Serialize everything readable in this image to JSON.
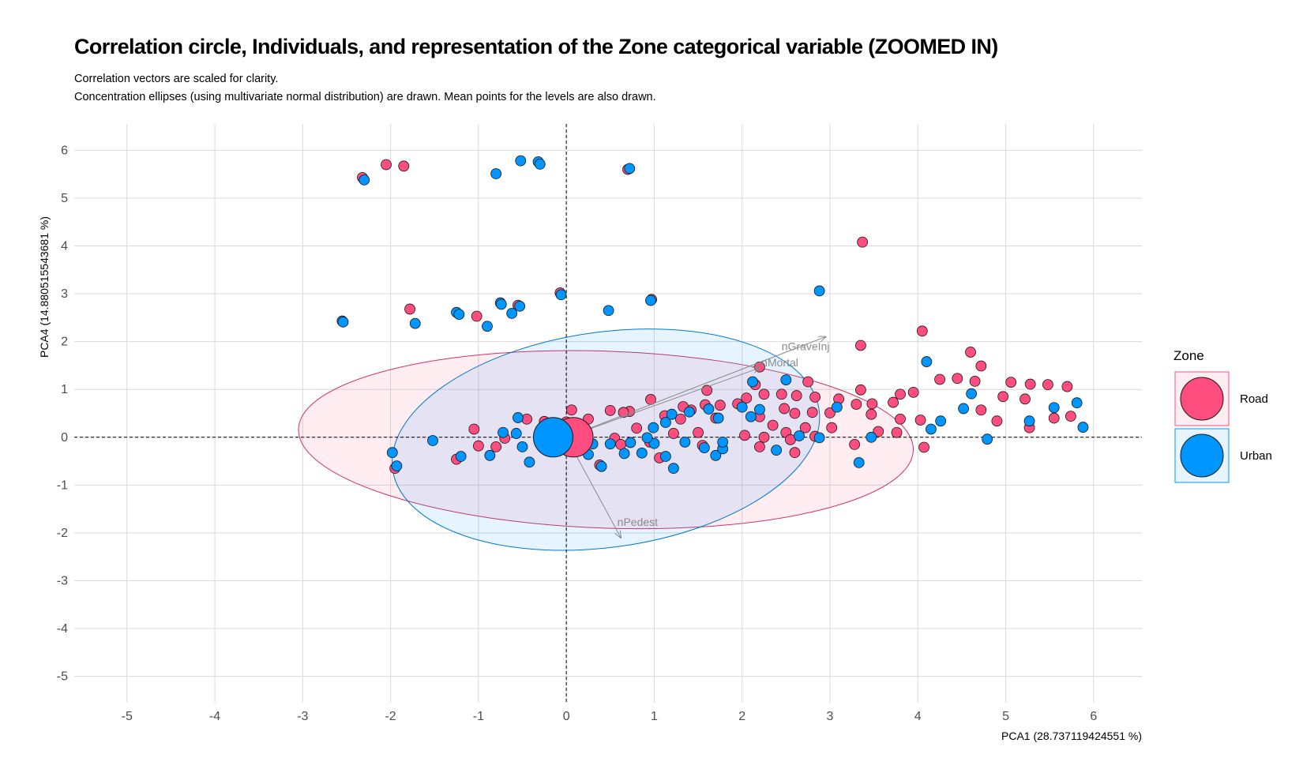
{
  "title": "Correlation circle, Individuals, and representation of the Zone categorical variable (ZOOMED IN)",
  "subtitle_line1": "Correlation vectors are scaled for clarity.",
  "subtitle_line2": "Concentration ellipses (using multivariate normal distribution) are drawn. Mean points for the levels are also drawn.",
  "chart_data": {
    "type": "scatter",
    "xlabel": "PCA1 (28.737119424551 %)",
    "ylabel": "PCA4 (14.880515543681 %)",
    "xlim": [
      -5.6,
      6.55
    ],
    "ylim": [
      -5.55,
      6.55
    ],
    "x_ticks": [
      "-5",
      "-4",
      "-3",
      "-2",
      "-1",
      "0",
      "1",
      "2",
      "3",
      "4",
      "5",
      "6"
    ],
    "y_ticks": [
      "-5",
      "-4",
      "-3",
      "-2",
      "-1",
      "0",
      "1",
      "2",
      "3",
      "4",
      "5",
      "6"
    ],
    "grid": true,
    "reference_lines": [
      "x = 0 dashed",
      "y = 0 dashed"
    ],
    "legend": {
      "title": "Zone",
      "position": "right",
      "entries": [
        {
          "label": "Road",
          "color": "#ff4d80"
        },
        {
          "label": "Urban",
          "color": "#0096ff"
        }
      ]
    },
    "ellipses": [
      {
        "level": "Road",
        "center": [
          0.45,
          -0.05
        ],
        "semi_axes": [
          3.5,
          1.85
        ],
        "angle_deg": 2,
        "fill": "#ff4d80",
        "stroke": "#cc3366"
      },
      {
        "level": "Urban",
        "center": [
          0.45,
          -0.05
        ],
        "semi_axes": [
          2.45,
          2.25
        ],
        "angle_deg": -8,
        "fill": "#0096ff",
        "stroke": "#0077cc"
      }
    ],
    "vectors": [
      {
        "label": "nGraveInj",
        "x": 2.95,
        "y": 2.1,
        "label_x": 2.45,
        "label_y": 1.82
      },
      {
        "label": "nMortal",
        "x": 2.2,
        "y": 1.45,
        "label_x": 2.22,
        "label_y": 1.48
      },
      {
        "label": "nPedest",
        "x": 0.62,
        "y": -2.1,
        "label_x": 0.58,
        "label_y": -1.85
      }
    ],
    "means": [
      {
        "level": "Road",
        "x": 0.08,
        "y": 0.0
      },
      {
        "level": "Urban",
        "x": -0.15,
        "y": 0.0
      }
    ],
    "series": [
      {
        "name": "Road",
        "color": "#ff4d80",
        "points": [
          [
            -2.32,
            5.43
          ],
          [
            -2.05,
            5.7
          ],
          [
            -1.85,
            5.67
          ],
          [
            0.7,
            5.6
          ],
          [
            3.37,
            4.08
          ],
          [
            -1.78,
            2.68
          ],
          [
            -1.02,
            2.53
          ],
          [
            -0.55,
            2.76
          ],
          [
            -0.07,
            3.02
          ],
          [
            0.97,
            2.88
          ],
          [
            4.05,
            2.22
          ],
          [
            3.35,
            1.92
          ],
          [
            4.6,
            1.78
          ],
          [
            4.72,
            1.49
          ],
          [
            2.75,
            1.16
          ],
          [
            4.25,
            1.21
          ],
          [
            4.45,
            1.23
          ],
          [
            4.65,
            1.17
          ],
          [
            5.06,
            1.15
          ],
          [
            5.28,
            1.11
          ],
          [
            5.48,
            1.1
          ],
          [
            5.7,
            1.06
          ],
          [
            2.15,
            1.1
          ],
          [
            2.2,
            1.47
          ],
          [
            3.35,
            0.99
          ],
          [
            3.95,
            0.94
          ],
          [
            3.8,
            0.9
          ],
          [
            4.97,
            0.85
          ],
          [
            5.22,
            0.8
          ],
          [
            2.25,
            0.9
          ],
          [
            2.45,
            0.9
          ],
          [
            2.62,
            0.87
          ],
          [
            2.83,
            0.84
          ],
          [
            3.1,
            0.8
          ],
          [
            3.3,
            0.69
          ],
          [
            3.48,
            0.7
          ],
          [
            3.72,
            0.73
          ],
          [
            4.72,
            0.57
          ],
          [
            4.9,
            0.34
          ],
          [
            5.55,
            0.4
          ],
          [
            5.74,
            0.44
          ],
          [
            5.27,
            0.2
          ],
          [
            3.55,
            0.12
          ],
          [
            3.76,
            0.1
          ],
          [
            4.03,
            0.36
          ],
          [
            4.07,
            -0.21
          ],
          [
            3.8,
            0.38
          ],
          [
            3.47,
            0.48
          ],
          [
            3.0,
            0.51
          ],
          [
            2.8,
            0.52
          ],
          [
            2.6,
            0.5
          ],
          [
            2.48,
            0.6
          ],
          [
            2.2,
            0.43
          ],
          [
            2.05,
            0.82
          ],
          [
            1.95,
            0.7
          ],
          [
            1.75,
            0.67
          ],
          [
            1.58,
            0.68
          ],
          [
            1.42,
            0.57
          ],
          [
            1.33,
            0.64
          ],
          [
            1.6,
            0.98
          ],
          [
            0.96,
            0.79
          ],
          [
            0.72,
            0.54
          ],
          [
            0.65,
            0.52
          ],
          [
            0.5,
            0.56
          ],
          [
            0.25,
            0.38
          ],
          [
            0.06,
            0.57
          ],
          [
            0.0,
            0.32
          ],
          [
            -0.25,
            0.33
          ],
          [
            -0.45,
            0.38
          ],
          [
            -0.7,
            -0.02
          ],
          [
            -0.8,
            -0.2
          ],
          [
            -1.0,
            -0.18
          ],
          [
            -1.05,
            0.17
          ],
          [
            -1.25,
            -0.46
          ],
          [
            -1.95,
            -0.65
          ],
          [
            0.55,
            -0.02
          ],
          [
            0.8,
            0.19
          ],
          [
            0.95,
            -0.1
          ],
          [
            1.12,
            0.45
          ],
          [
            1.22,
            0.08
          ],
          [
            1.3,
            0.38
          ],
          [
            1.5,
            0.1
          ],
          [
            1.55,
            -0.17
          ],
          [
            1.7,
            0.4
          ],
          [
            2.03,
            0.04
          ],
          [
            2.2,
            -0.2
          ],
          [
            2.25,
            0.0
          ],
          [
            2.35,
            0.25
          ],
          [
            2.5,
            0.1
          ],
          [
            2.55,
            -0.05
          ],
          [
            2.6,
            -0.32
          ],
          [
            2.72,
            0.2
          ],
          [
            2.83,
            0.02
          ],
          [
            3.02,
            0.2
          ],
          [
            3.28,
            -0.15
          ],
          [
            0.38,
            -0.58
          ],
          [
            1.06,
            -0.43
          ],
          [
            0.62,
            -0.15
          ]
        ]
      },
      {
        "name": "Urban",
        "color": "#0096ff",
        "points": [
          [
            -2.3,
            5.38
          ],
          [
            -0.8,
            5.51
          ],
          [
            -0.52,
            5.78
          ],
          [
            -0.32,
            5.76
          ],
          [
            -0.3,
            5.71
          ],
          [
            0.72,
            5.62
          ],
          [
            -2.55,
            2.43
          ],
          [
            -2.54,
            2.41
          ],
          [
            -1.72,
            2.38
          ],
          [
            -1.25,
            2.61
          ],
          [
            -1.22,
            2.57
          ],
          [
            -0.75,
            2.81
          ],
          [
            -0.74,
            2.78
          ],
          [
            -0.62,
            2.59
          ],
          [
            -0.53,
            2.74
          ],
          [
            -0.9,
            2.32
          ],
          [
            -0.06,
            2.98
          ],
          [
            0.48,
            2.65
          ],
          [
            0.96,
            2.86
          ],
          [
            2.88,
            3.06
          ],
          [
            4.1,
            1.58
          ],
          [
            2.12,
            1.16
          ],
          [
            2.5,
            1.2
          ],
          [
            4.61,
            0.91
          ],
          [
            4.52,
            0.6
          ],
          [
            5.55,
            0.62
          ],
          [
            5.81,
            0.72
          ],
          [
            5.88,
            0.21
          ],
          [
            5.27,
            0.34
          ],
          [
            4.26,
            0.34
          ],
          [
            4.15,
            0.17
          ],
          [
            4.79,
            -0.04
          ],
          [
            3.33,
            -0.53
          ],
          [
            3.47,
            0.0
          ],
          [
            3.08,
            0.63
          ],
          [
            2.88,
            -0.01
          ],
          [
            2.65,
            0.03
          ],
          [
            2.39,
            -0.27
          ],
          [
            2.0,
            0.63
          ],
          [
            2.1,
            0.43
          ],
          [
            2.2,
            0.58
          ],
          [
            1.73,
            0.4
          ],
          [
            1.62,
            0.59
          ],
          [
            1.4,
            0.53
          ],
          [
            1.2,
            0.48
          ],
          [
            1.13,
            0.31
          ],
          [
            0.99,
            0.2
          ],
          [
            1.0,
            -0.13
          ],
          [
            0.92,
            -0.01
          ],
          [
            0.86,
            -0.33
          ],
          [
            0.73,
            -0.11
          ],
          [
            0.66,
            -0.34
          ],
          [
            0.5,
            -0.14
          ],
          [
            0.3,
            -0.14
          ],
          [
            0.25,
            -0.36
          ],
          [
            0.4,
            -0.61
          ],
          [
            -0.42,
            -0.52
          ],
          [
            -0.5,
            -0.2
          ],
          [
            -0.57,
            0.08
          ],
          [
            -0.55,
            0.41
          ],
          [
            -0.72,
            0.1
          ],
          [
            -0.87,
            -0.38
          ],
          [
            -1.2,
            -0.4
          ],
          [
            -1.52,
            -0.07
          ],
          [
            -1.98,
            -0.32
          ],
          [
            -1.93,
            -0.6
          ],
          [
            1.13,
            -0.4
          ],
          [
            1.22,
            -0.65
          ],
          [
            1.35,
            -0.1
          ],
          [
            1.57,
            -0.22
          ],
          [
            1.7,
            -0.38
          ],
          [
            1.78,
            -0.24
          ],
          [
            1.78,
            -0.1
          ]
        ]
      }
    ]
  }
}
